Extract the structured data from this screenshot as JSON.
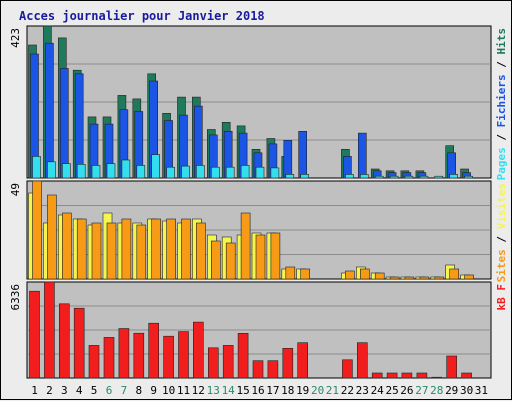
{
  "chart_data": {
    "type": "bar",
    "title": "Acces journalier pour Janvier 2018",
    "days": [
      "1",
      "2",
      "3",
      "4",
      "5",
      "6",
      "7",
      "8",
      "9",
      "10",
      "11",
      "12",
      "13",
      "14",
      "15",
      "16",
      "17",
      "18",
      "19",
      "20",
      "21",
      "22",
      "23",
      "24",
      "25",
      "26",
      "27",
      "28",
      "29",
      "30",
      "31"
    ],
    "weekend_days": [
      "6",
      "7",
      "13",
      "14",
      "20",
      "21",
      "27",
      "28"
    ],
    "panels": [
      {
        "id": "hits",
        "max_label": "423",
        "ylim": [
          0,
          423
        ],
        "series": [
          {
            "name": "Hits",
            "color": "#1e7a5a",
            "values": [
              370,
              423,
              390,
              300,
              170,
              170,
              230,
              220,
              290,
              180,
              225,
              225,
              135,
              155,
              145,
              80,
              110,
              60,
              0,
              0,
              0,
              80,
              0,
              25,
              20,
              20,
              20,
              0,
              90,
              25,
              0
            ]
          },
          {
            "name": "Fichiers",
            "color": "#1a55e6",
            "values": [
              345,
              375,
              305,
              290,
              150,
              150,
              190,
              185,
              270,
              160,
              175,
              200,
              120,
              130,
              125,
              70,
              95,
              105,
              130,
              0,
              0,
              60,
              125,
              20,
              15,
              15,
              15,
              0,
              70,
              15,
              0
            ]
          },
          {
            "name": "Pages",
            "color": "#33dfef",
            "values": [
              60,
              45,
              40,
              38,
              35,
              40,
              50,
              35,
              65,
              30,
              33,
              35,
              30,
              30,
              35,
              30,
              28,
              10,
              10,
              0,
              0,
              10,
              10,
              5,
              5,
              5,
              5,
              5,
              10,
              5,
              0
            ]
          }
        ]
      },
      {
        "id": "visits",
        "max_label": "49",
        "ylim": [
          0,
          49
        ],
        "series": [
          {
            "name": "Visites",
            "color": "#f5f550",
            "values": [
              43,
              28,
              32,
              30,
              27,
              33,
              28,
              28,
              30,
              29,
              28,
              30,
              22,
              21,
              22,
              23,
              23,
              5,
              5,
              0,
              0,
              3,
              6,
              3,
              1,
              1,
              1,
              1,
              7,
              2,
              0
            ]
          },
          {
            "name": "Sites",
            "color": "#f79a15",
            "values": [
              49,
              42,
              33,
              30,
              28,
              28,
              30,
              27,
              30,
              30,
              30,
              28,
              19,
              18,
              33,
              22,
              23,
              6,
              5,
              0,
              0,
              4,
              5,
              3,
              1,
              1,
              1,
              1,
              5,
              2,
              0
            ]
          }
        ]
      },
      {
        "id": "kb",
        "max_label": "6336",
        "ylim": [
          0,
          6336
        ],
        "series": [
          {
            "name": "kB F",
            "color": "#f21e1e",
            "values": [
              5730,
              6336,
              4900,
              4610,
              2150,
              2680,
              3270,
              2960,
              3620,
              2760,
              3060,
              3690,
              1990,
              2150,
              2950,
              1140,
              1140,
              1960,
              2330,
              0,
              0,
              1200,
              2330,
              330,
              330,
              330,
              330,
              50,
              1450,
              330,
              0
            ]
          }
        ]
      }
    ],
    "right_labels": {
      "hits": [
        "Pages",
        "Fichiers",
        "Hits"
      ],
      "visits": [
        "Sites",
        "Visites"
      ],
      "kb": [
        "kB F"
      ]
    }
  }
}
